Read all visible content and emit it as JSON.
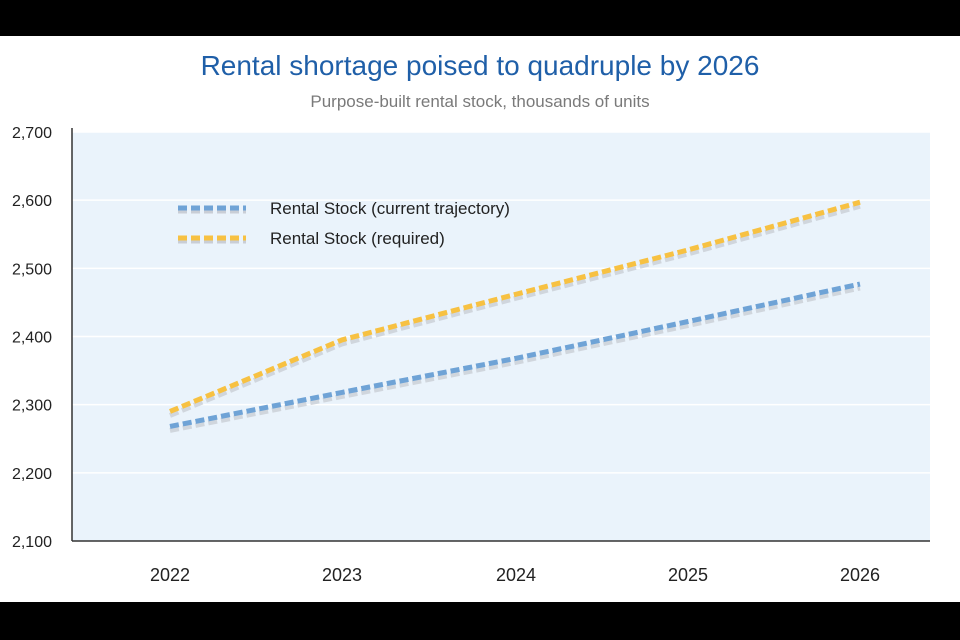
{
  "chart_data": {
    "type": "line",
    "title": "Rental shortage poised to quadruple by 2026",
    "subtitle": "Purpose-built rental stock, thousands of units",
    "xlabel": "",
    "ylabel": "",
    "categories": [
      "2022",
      "2023",
      "2024",
      "2025",
      "2026"
    ],
    "ylim": [
      2100,
      2700
    ],
    "yticks": [
      2100,
      2200,
      2300,
      2400,
      2500,
      2600,
      2700
    ],
    "ytick_labels": [
      "2,100",
      "2,200",
      "2,300",
      "2,400",
      "2,500",
      "2,600",
      "2,700"
    ],
    "grid": true,
    "legend_position": "top-left",
    "series": [
      {
        "name": "Rental Stock (current trajectory)",
        "values": [
          2268,
          2318,
          2368,
          2422,
          2477
        ],
        "color": "#6fa3d6",
        "style": "dashed"
      },
      {
        "name": "Rental Stock (required)",
        "values": [
          2290,
          2395,
          2462,
          2527,
          2597
        ],
        "color": "#f7c142",
        "style": "dashed"
      }
    ]
  },
  "colors": {
    "plot_background": "#eaf3fb",
    "gridline": "#ffffff",
    "title": "#1f5fa8",
    "axis": "#333333"
  }
}
